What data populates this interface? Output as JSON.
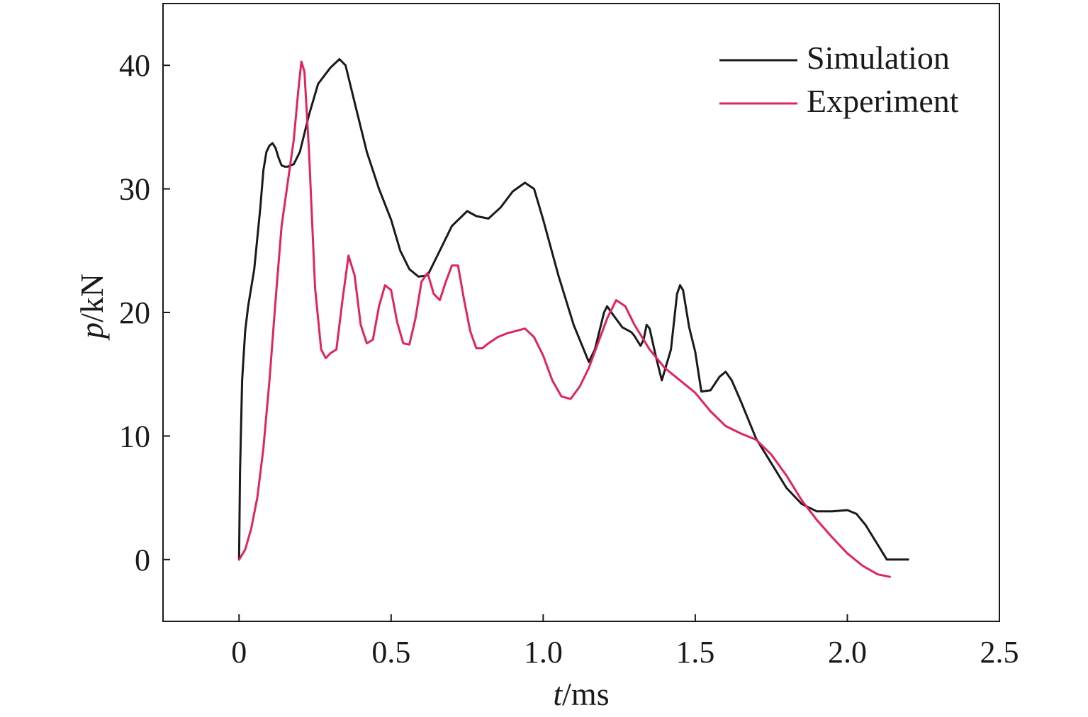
{
  "chart_data": {
    "type": "line",
    "title": "",
    "xlabel": {
      "var": "t",
      "unit": "/ms"
    },
    "ylabel": {
      "var": "p",
      "unit": "/kN"
    },
    "xlim": [
      -0.25,
      2.5
    ],
    "ylim": [
      -5,
      45
    ],
    "xticks": [
      0,
      0.5,
      1.0,
      1.5,
      2.0,
      2.5
    ],
    "xtick_labels": [
      "0",
      "0.5",
      "1.0",
      "1.5",
      "2.0",
      "2.5"
    ],
    "yticks": [
      0,
      10,
      20,
      30,
      40
    ],
    "ytick_labels": [
      "0",
      "10",
      "20",
      "30",
      "40"
    ],
    "grid": false,
    "legend_position": "top-right",
    "series": [
      {
        "name": "Simulation",
        "color": "#1a1a1a",
        "x": [
          0.0,
          0.003,
          0.01,
          0.02,
          0.03,
          0.05,
          0.07,
          0.08,
          0.09,
          0.1,
          0.11,
          0.12,
          0.13,
          0.14,
          0.15,
          0.16,
          0.18,
          0.2,
          0.23,
          0.26,
          0.3,
          0.33,
          0.35,
          0.38,
          0.42,
          0.46,
          0.5,
          0.53,
          0.56,
          0.59,
          0.62,
          0.65,
          0.7,
          0.75,
          0.78,
          0.82,
          0.86,
          0.9,
          0.94,
          0.97,
          1.0,
          1.05,
          1.1,
          1.15,
          1.17,
          1.2,
          1.21,
          1.23,
          1.26,
          1.29,
          1.3,
          1.31,
          1.32,
          1.33,
          1.34,
          1.35,
          1.37,
          1.39,
          1.42,
          1.44,
          1.45,
          1.46,
          1.48,
          1.5,
          1.52,
          1.55,
          1.58,
          1.6,
          1.62,
          1.65,
          1.7,
          1.75,
          1.8,
          1.85,
          1.9,
          1.95,
          2.0,
          2.03,
          2.06,
          2.1,
          2.13,
          2.15,
          2.2
        ],
        "y": [
          0.0,
          7.0,
          14.5,
          18.5,
          20.5,
          23.5,
          28.5,
          31.5,
          33.0,
          33.5,
          33.7,
          33.3,
          32.5,
          31.9,
          31.8,
          31.8,
          32.0,
          33.0,
          36.0,
          38.5,
          39.8,
          40.5,
          40.0,
          37.0,
          33.0,
          30.0,
          27.5,
          25.0,
          23.5,
          22.9,
          23.0,
          24.5,
          27.0,
          28.2,
          27.8,
          27.6,
          28.5,
          29.8,
          30.5,
          30.0,
          27.5,
          23.0,
          19.0,
          16.0,
          17.0,
          20.0,
          20.5,
          19.8,
          18.8,
          18.4,
          18.1,
          17.7,
          17.3,
          17.8,
          19.0,
          18.7,
          16.5,
          14.5,
          17.0,
          21.5,
          22.2,
          21.8,
          18.8,
          16.8,
          13.6,
          13.7,
          14.8,
          15.2,
          14.5,
          12.8,
          9.8,
          7.8,
          5.8,
          4.5,
          3.9,
          3.9,
          4.0,
          3.7,
          2.8,
          1.2,
          0.0,
          0.0,
          0.0
        ]
      },
      {
        "name": "Experiment",
        "color": "#e0245e",
        "x": [
          0.0,
          0.02,
          0.04,
          0.06,
          0.08,
          0.1,
          0.12,
          0.14,
          0.16,
          0.18,
          0.195,
          0.205,
          0.215,
          0.23,
          0.25,
          0.27,
          0.285,
          0.3,
          0.32,
          0.34,
          0.36,
          0.38,
          0.4,
          0.42,
          0.44,
          0.46,
          0.48,
          0.5,
          0.52,
          0.54,
          0.56,
          0.58,
          0.6,
          0.62,
          0.64,
          0.66,
          0.68,
          0.7,
          0.72,
          0.74,
          0.76,
          0.78,
          0.8,
          0.82,
          0.85,
          0.88,
          0.91,
          0.94,
          0.97,
          1.0,
          1.03,
          1.06,
          1.09,
          1.12,
          1.15,
          1.18,
          1.21,
          1.24,
          1.27,
          1.3,
          1.35,
          1.4,
          1.45,
          1.5,
          1.55,
          1.6,
          1.65,
          1.7,
          1.75,
          1.8,
          1.85,
          1.9,
          1.95,
          2.0,
          2.05,
          2.1,
          2.14
        ],
        "y": [
          0.0,
          0.8,
          2.5,
          5.0,
          9.0,
          14.5,
          21.0,
          27.0,
          30.5,
          34.0,
          38.0,
          40.3,
          39.5,
          33.0,
          22.0,
          17.0,
          16.3,
          16.7,
          17.0,
          21.0,
          24.6,
          23.0,
          19.0,
          17.5,
          17.8,
          20.5,
          22.2,
          21.8,
          19.2,
          17.5,
          17.4,
          19.5,
          22.5,
          23.2,
          21.5,
          21.0,
          22.5,
          23.8,
          23.8,
          21.0,
          18.5,
          17.1,
          17.1,
          17.5,
          18.0,
          18.3,
          18.5,
          18.7,
          18.0,
          16.5,
          14.5,
          13.2,
          13.0,
          14.0,
          15.5,
          17.5,
          19.5,
          21.0,
          20.5,
          19.0,
          17.0,
          15.5,
          14.5,
          13.5,
          12.0,
          10.8,
          10.2,
          9.7,
          8.5,
          6.8,
          4.8,
          3.2,
          1.8,
          0.5,
          -0.5,
          -1.2,
          -1.4
        ]
      }
    ]
  }
}
